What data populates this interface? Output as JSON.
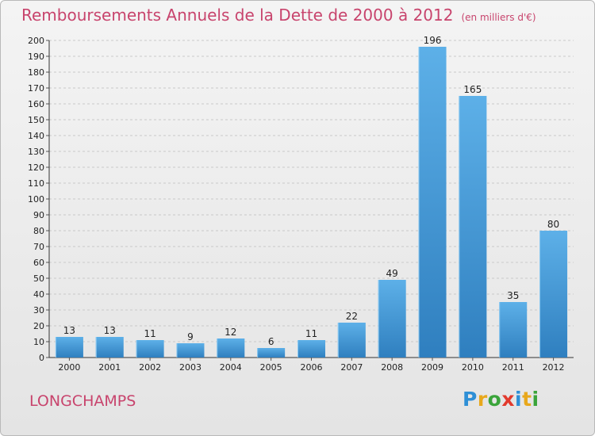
{
  "title": "Remboursements Annuels de la Dette de 2000 à 2012",
  "unit": "(en milliers d'€)",
  "commune": "LONGCHAMPS",
  "logo": {
    "text": "Proxiti",
    "letters": [
      {
        "ch": "P",
        "color": "#2e8fd6"
      },
      {
        "ch": "r",
        "color": "#e8a81c"
      },
      {
        "ch": "o",
        "color": "#3aa43a"
      },
      {
        "ch": "x",
        "color": "#e23a2d"
      },
      {
        "ch": "i",
        "color": "#2e8fd6"
      },
      {
        "ch": "t",
        "color": "#e8a81c"
      },
      {
        "ch": "i",
        "color": "#3aa43a"
      }
    ]
  },
  "colors": {
    "bar_top": "#5db0e8",
    "bar_bottom": "#2f7fbf",
    "title": "#c8446d"
  },
  "chart_data": {
    "type": "bar",
    "categories": [
      "2000",
      "2001",
      "2002",
      "2003",
      "2004",
      "2005",
      "2006",
      "2007",
      "2008",
      "2009",
      "2010",
      "2011",
      "2012"
    ],
    "values": [
      13,
      13,
      11,
      9,
      12,
      6,
      11,
      22,
      49,
      196,
      165,
      35,
      80
    ],
    "ylim": [
      0,
      200
    ],
    "yticks": [
      0,
      10,
      20,
      30,
      40,
      50,
      60,
      70,
      80,
      90,
      100,
      110,
      120,
      130,
      140,
      150,
      160,
      170,
      180,
      190,
      200
    ],
    "grid": true,
    "data_labels": true
  }
}
